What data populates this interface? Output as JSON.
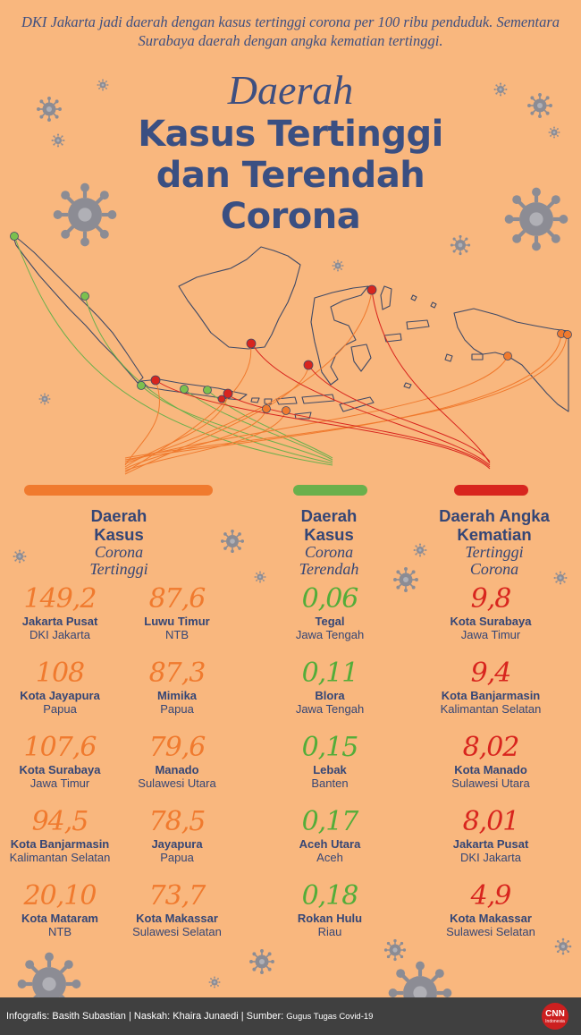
{
  "intro": "DKI Jakarta jadi daerah dengan kasus tertinggi corona per 100 ribu penduduk. Sementara Surabaya daerah dengan angka kematian tertinggi.",
  "title": {
    "line1": "Daerah",
    "line2": "Kasus Tertinggi",
    "line3": "dan Terendah",
    "line4": "Corona"
  },
  "colors": {
    "background": "#f9b77e",
    "navy": "#3a4f82",
    "orange": "#f07a2e",
    "green": "#53ad39",
    "red": "#d8251e"
  },
  "icons": [
    "virus-icon",
    "map-indonesia-icon",
    "cnn-logo-icon"
  ],
  "columns": {
    "high": {
      "heading1": "Daerah",
      "heading2": "Kasus",
      "sub1": "Corona",
      "sub2": "Tertinggi",
      "entries": [
        {
          "value": "149,2",
          "name": "Jakarta Pusat",
          "province": "DKI Jakarta"
        },
        {
          "value": "108",
          "name": "Kota Jayapura",
          "province": "Papua"
        },
        {
          "value": "107,6",
          "name": "Kota Surabaya",
          "province": "Jawa Timur"
        },
        {
          "value": "94,5",
          "name": "Kota Banjarmasin",
          "province": "Kalimantan Selatan"
        },
        {
          "value": "20,10",
          "name": "Kota Mataram",
          "province": "NTB"
        },
        {
          "value": "87,6",
          "name": "Luwu Timur",
          "province": "NTB"
        },
        {
          "value": "87,3",
          "name": "Mimika",
          "province": "Papua"
        },
        {
          "value": "79,6",
          "name": "Manado",
          "province": "Sulawesi Utara"
        },
        {
          "value": "78,5",
          "name": "Jayapura",
          "province": "Papua"
        },
        {
          "value": "73,7",
          "name": "Kota Makassar",
          "province": "Sulawesi Selatan"
        }
      ]
    },
    "low": {
      "heading1": "Daerah",
      "heading2": "Kasus",
      "sub1": "Corona",
      "sub2": "Terendah",
      "entries": [
        {
          "value": "0,06",
          "name": "Tegal",
          "province": "Jawa Tengah"
        },
        {
          "value": "0,11",
          "name": "Blora",
          "province": "Jawa Tengah"
        },
        {
          "value": "0,15",
          "name": "Lebak",
          "province": "Banten"
        },
        {
          "value": "0,17",
          "name": "Aceh Utara",
          "province": "Aceh"
        },
        {
          "value": "0,18",
          "name": "Rokan Hulu",
          "province": "Riau"
        }
      ]
    },
    "death": {
      "heading1": "Daerah Angka",
      "heading2": "Kematian",
      "sub1": "Tertinggi",
      "sub2": "Corona",
      "entries": [
        {
          "value": "9,8",
          "name": "Kota Surabaya",
          "province": "Jawa Timur"
        },
        {
          "value": "9,4",
          "name": "Kota Banjarmasin",
          "province": "Kalimantan Selatan"
        },
        {
          "value": "8,02",
          "name": "Kota Manado",
          "province": "Sulawesi Utara"
        },
        {
          "value": "8,01",
          "name": "Jakarta Pusat",
          "province": "DKI Jakarta"
        },
        {
          "value": "4,9",
          "name": "Kota Makassar",
          "province": "Sulawesi Selatan"
        }
      ]
    }
  },
  "footer": {
    "credit": "Infografis: Basith Subastian | Naskah: Khaira Junaedi | Sumber:",
    "source": "Gugus Tugas Covid-19",
    "logo_text": "CNN",
    "logo_sub": "Indonesia"
  }
}
